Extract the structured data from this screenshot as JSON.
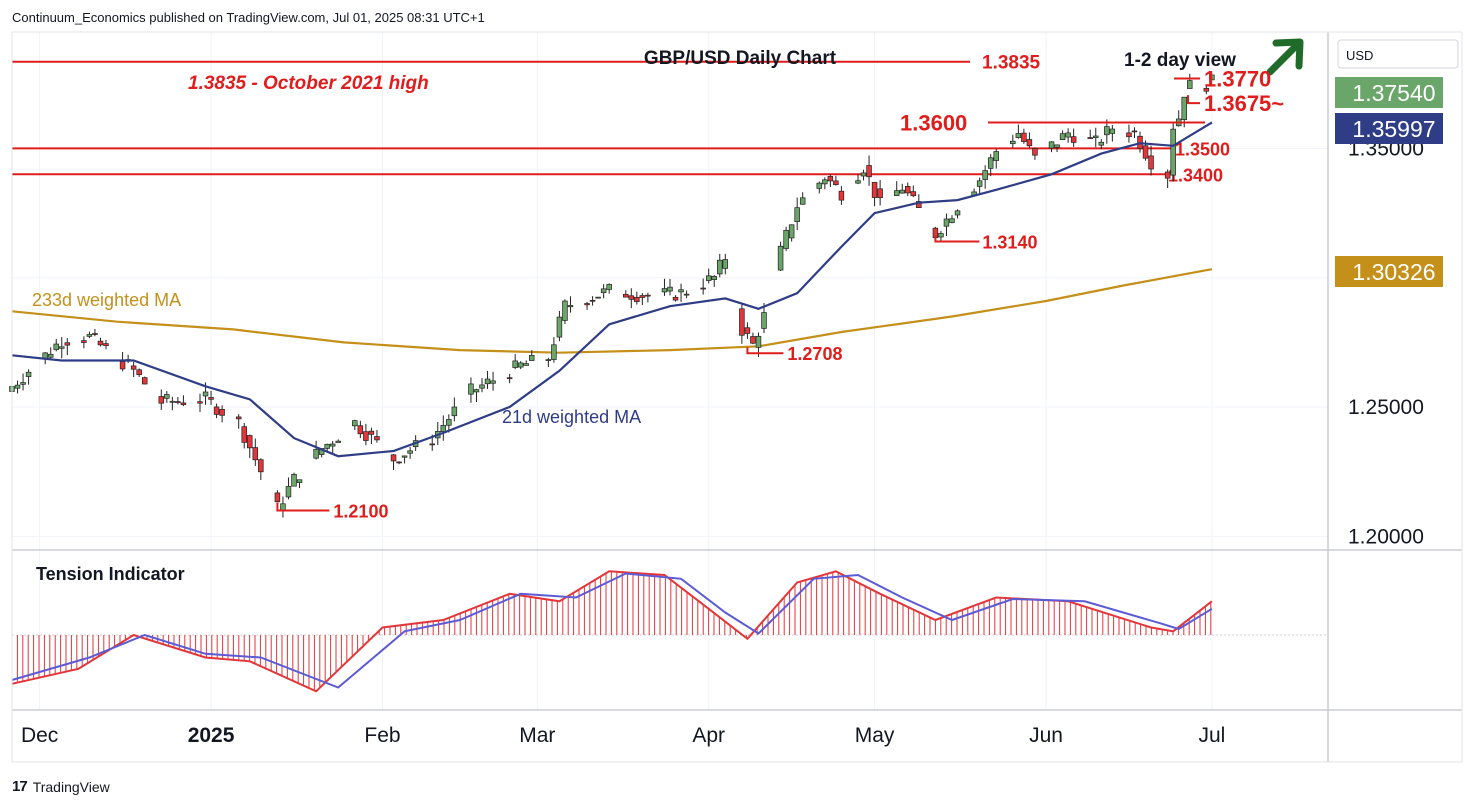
{
  "header": {
    "published": "Continuum_Economics published on TradingView.com, Jul 01, 2025 08:31 UTC+1"
  },
  "footer": {
    "brand": "TradingView",
    "logo_glyph": "17"
  },
  "chart_data": {
    "type": "candlestick",
    "title": "GBP/USD Daily Chart",
    "subtitle": "1-2 day view",
    "currency": "USD",
    "x_labels": [
      "Dec",
      "2025",
      "Feb",
      "Mar",
      "Apr",
      "May",
      "Jun",
      "Jul"
    ],
    "y_ticks": [
      "1.35000",
      "1.25000",
      "1.20000"
    ],
    "y_range": [
      1.1955,
      1.395
    ],
    "price_badges": [
      {
        "label": "1.37540",
        "color": "#6aa56a"
      },
      {
        "label": "1.35997",
        "color": "#2f3c86"
      },
      {
        "label": "1.30326",
        "color": "#c4901a"
      }
    ],
    "horizontal_levels": [
      {
        "value": 1.3835,
        "label": "1.3835"
      },
      {
        "value": 1.35,
        "label": "1.3500"
      },
      {
        "value": 1.34,
        "label": "1.3400"
      }
    ],
    "annotations": [
      {
        "text": "1.3835 - October 2021 high",
        "style": "italic"
      },
      {
        "value": 1.377,
        "label": "1.3770"
      },
      {
        "value": 1.3675,
        "label": "1.3675~"
      },
      {
        "value": 1.36,
        "label": "1.3600"
      },
      {
        "value": 1.314,
        "label": "1.3140"
      },
      {
        "value": 1.2708,
        "label": "1.2708"
      },
      {
        "value": 1.21,
        "label": "1.2100"
      }
    ],
    "ma_labels": {
      "ma233": "233d weighted MA",
      "ma21": "21d weighted MA"
    },
    "colors": {
      "up": "#6aa56a",
      "down": "#e2363a",
      "ma21": "#2f3c86",
      "ma233": "#c4901a",
      "level": "#e01d1d"
    },
    "price_path": [
      [
        "2024-11-26",
        1.258
      ],
      [
        "2024-12-05",
        1.276
      ],
      [
        "2024-12-10",
        1.277
      ],
      [
        "2024-12-18",
        1.264
      ],
      [
        "2024-12-23",
        1.252
      ],
      [
        "2024-12-31",
        1.253
      ],
      [
        "2025-01-06",
        1.244
      ],
      [
        "2025-01-13",
        1.211
      ],
      [
        "2025-01-16",
        1.222
      ],
      [
        "2025-01-21",
        1.234
      ],
      [
        "2025-01-27",
        1.244
      ],
      [
        "2025-02-03",
        1.23
      ],
      [
        "2025-02-10",
        1.238
      ],
      [
        "2025-02-17",
        1.256
      ],
      [
        "2025-02-26",
        1.266
      ],
      [
        "2025-03-03",
        1.269
      ],
      [
        "2025-03-06",
        1.289
      ],
      [
        "2025-03-14",
        1.295
      ],
      [
        "2025-03-21",
        1.293
      ],
      [
        "2025-03-27",
        1.294
      ],
      [
        "2025-04-02",
        1.3
      ],
      [
        "2025-04-04",
        1.308
      ],
      [
        "2025-04-07",
        1.28
      ],
      [
        "2025-04-09",
        1.274
      ],
      [
        "2025-04-11",
        1.285
      ],
      [
        "2025-04-14",
        1.31
      ],
      [
        "2025-04-17",
        1.328
      ],
      [
        "2025-04-22",
        1.339
      ],
      [
        "2025-04-25",
        1.333
      ],
      [
        "2025-04-29",
        1.343
      ],
      [
        "2025-05-02",
        1.328
      ],
      [
        "2025-05-06",
        1.335
      ],
      [
        "2025-05-09",
        1.326
      ],
      [
        "2025-05-12",
        1.317
      ],
      [
        "2025-05-16",
        1.328
      ],
      [
        "2025-05-20",
        1.338
      ],
      [
        "2025-05-23",
        1.349
      ],
      [
        "2025-05-27",
        1.356
      ],
      [
        "2025-05-30",
        1.346
      ],
      [
        "2025-06-05",
        1.356
      ],
      [
        "2025-06-10",
        1.352
      ],
      [
        "2025-06-13",
        1.358
      ],
      [
        "2025-06-17",
        1.356
      ],
      [
        "2025-06-20",
        1.345
      ],
      [
        "2025-06-23",
        1.34
      ],
      [
        "2025-06-24",
        1.359
      ],
      [
        "2025-06-25",
        1.362
      ],
      [
        "2025-06-26",
        1.372
      ],
      [
        "2025-06-27",
        1.374
      ],
      [
        "2025-06-30",
        1.375
      ],
      [
        "2025-07-01",
        1.3754
      ]
    ],
    "ma21_path": [
      [
        "2024-11-26",
        1.27
      ],
      [
        "2024-12-05",
        1.268
      ],
      [
        "2024-12-18",
        1.268
      ],
      [
        "2024-12-31",
        1.258
      ],
      [
        "2025-01-08",
        1.253
      ],
      [
        "2025-01-16",
        1.238
      ],
      [
        "2025-01-24",
        1.231
      ],
      [
        "2025-02-03",
        1.233
      ],
      [
        "2025-02-12",
        1.24
      ],
      [
        "2025-02-24",
        1.25
      ],
      [
        "2025-03-05",
        1.264
      ],
      [
        "2025-03-14",
        1.282
      ],
      [
        "2025-03-25",
        1.289
      ],
      [
        "2025-04-04",
        1.292
      ],
      [
        "2025-04-10",
        1.288
      ],
      [
        "2025-04-17",
        1.294
      ],
      [
        "2025-04-25",
        1.312
      ],
      [
        "2025-05-01",
        1.325
      ],
      [
        "2025-05-09",
        1.329
      ],
      [
        "2025-05-16",
        1.33
      ],
      [
        "2025-05-23",
        1.334
      ],
      [
        "2025-06-02",
        1.34
      ],
      [
        "2025-06-11",
        1.348
      ],
      [
        "2025-06-18",
        1.352
      ],
      [
        "2025-06-24",
        1.351
      ],
      [
        "2025-07-01",
        1.36
      ]
    ],
    "ma233_path": [
      [
        "2024-11-26",
        1.287
      ],
      [
        "2024-12-15",
        1.283
      ],
      [
        "2025-01-05",
        1.28
      ],
      [
        "2025-01-25",
        1.275
      ],
      [
        "2025-02-15",
        1.272
      ],
      [
        "2025-03-05",
        1.271
      ],
      [
        "2025-03-25",
        1.272
      ],
      [
        "2025-04-10",
        1.2735
      ],
      [
        "2025-04-25",
        1.279
      ],
      [
        "2025-05-15",
        1.285
      ],
      [
        "2025-06-01",
        1.291
      ],
      [
        "2025-06-15",
        1.297
      ],
      [
        "2025-07-01",
        1.3033
      ]
    ],
    "tension_indicator": {
      "label": "Tension Indicator",
      "range": [
        -1.0,
        1.0
      ],
      "fast": [
        [
          "2024-11-26",
          -0.65
        ],
        [
          "2024-12-08",
          -0.45
        ],
        [
          "2024-12-18",
          0.0
        ],
        [
          "2024-12-31",
          -0.3
        ],
        [
          "2025-01-08",
          -0.35
        ],
        [
          "2025-01-20",
          -0.75
        ],
        [
          "2025-02-01",
          0.1
        ],
        [
          "2025-02-12",
          0.2
        ],
        [
          "2025-02-24",
          0.55
        ],
        [
          "2025-03-05",
          0.45
        ],
        [
          "2025-03-14",
          0.85
        ],
        [
          "2025-03-24",
          0.8
        ],
        [
          "2025-04-01",
          0.35
        ],
        [
          "2025-04-08",
          -0.05
        ],
        [
          "2025-04-17",
          0.7
        ],
        [
          "2025-04-24",
          0.85
        ],
        [
          "2025-05-02",
          0.55
        ],
        [
          "2025-05-12",
          0.2
        ],
        [
          "2025-05-23",
          0.5
        ],
        [
          "2025-06-05",
          0.45
        ],
        [
          "2025-06-20",
          0.1
        ],
        [
          "2025-06-24",
          0.05
        ],
        [
          "2025-07-01",
          0.45
        ]
      ],
      "slow": [
        [
          "2024-11-26",
          -0.6
        ],
        [
          "2024-12-10",
          -0.3
        ],
        [
          "2024-12-20",
          0.0
        ],
        [
          "2024-12-31",
          -0.25
        ],
        [
          "2025-01-10",
          -0.3
        ],
        [
          "2025-01-24",
          -0.7
        ],
        [
          "2025-02-05",
          0.05
        ],
        [
          "2025-02-15",
          0.2
        ],
        [
          "2025-02-26",
          0.55
        ],
        [
          "2025-03-08",
          0.5
        ],
        [
          "2025-03-17",
          0.82
        ],
        [
          "2025-03-27",
          0.75
        ],
        [
          "2025-04-04",
          0.3
        ],
        [
          "2025-04-10",
          0.02
        ],
        [
          "2025-04-20",
          0.75
        ],
        [
          "2025-04-28",
          0.8
        ],
        [
          "2025-05-06",
          0.5
        ],
        [
          "2025-05-15",
          0.2
        ],
        [
          "2025-05-26",
          0.48
        ],
        [
          "2025-06-08",
          0.45
        ],
        [
          "2025-06-22",
          0.15
        ],
        [
          "2025-06-25",
          0.08
        ],
        [
          "2025-07-01",
          0.35
        ]
      ]
    }
  }
}
